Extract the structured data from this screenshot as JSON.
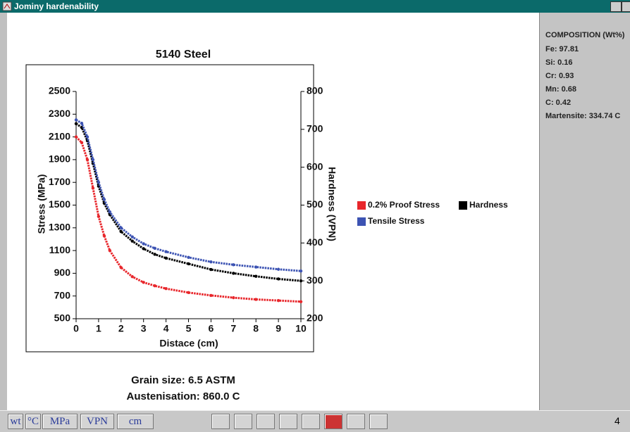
{
  "window": {
    "title": "Jominy hardenability"
  },
  "chart_data": {
    "type": "scatter",
    "title": "5140 Steel",
    "x_label": "Distace (cm)",
    "y_label": "Stress (MPa)",
    "y2_label": "Hardness (VPN)",
    "x": [
      0,
      0.25,
      0.5,
      0.75,
      1,
      1.25,
      1.5,
      2,
      2.5,
      3,
      3.5,
      4,
      5,
      6,
      7,
      8,
      9,
      10
    ],
    "series": [
      {
        "name": "0.2% Proof Stress",
        "color": "#e8262b",
        "values": [
          2100,
          2050,
          1900,
          1650,
          1400,
          1230,
          1100,
          950,
          870,
          820,
          790,
          765,
          730,
          705,
          685,
          670,
          660,
          650
        ]
      },
      {
        "name": "Hardness",
        "color": "#000000",
        "axis": "y2",
        "values": [
          715,
          705,
          670,
          610,
          550,
          505,
          475,
          430,
          405,
          385,
          370,
          360,
          345,
          330,
          320,
          312,
          305,
          300
        ]
      },
      {
        "name": "Tensile Stress",
        "color": "#3c53b3",
        "values": [
          2250,
          2220,
          2100,
          1900,
          1700,
          1550,
          1440,
          1300,
          1220,
          1160,
          1120,
          1090,
          1040,
          1000,
          975,
          955,
          935,
          920
        ]
      }
    ],
    "xlim": [
      0,
      10
    ],
    "xticks": [
      0,
      1,
      2,
      3,
      4,
      5,
      6,
      7,
      8,
      9,
      10
    ],
    "ylim": [
      500,
      2500
    ],
    "yticks": [
      500,
      700,
      900,
      1100,
      1300,
      1500,
      1700,
      1900,
      2100,
      2300,
      2500
    ],
    "y2lim": [
      200,
      800
    ],
    "y2ticks": [
      200,
      300,
      400,
      500,
      600,
      700,
      800
    ],
    "legend": "right"
  },
  "info": [
    "Grain size: 6.5 ASTM",
    "Austenisation: 860.0 C"
  ],
  "composition": {
    "title": "COMPOSITION (Wt%)",
    "items": [
      "Fe: 97.81",
      "Si: 0.16",
      "Cr: 0.93",
      "Mn: 0.68",
      "C: 0.42",
      "Martensite: 334.74 C"
    ]
  },
  "toolbar": {
    "buttons": [
      "wt",
      "°C",
      "MPa",
      "VPN",
      "cm"
    ],
    "status": "4"
  }
}
